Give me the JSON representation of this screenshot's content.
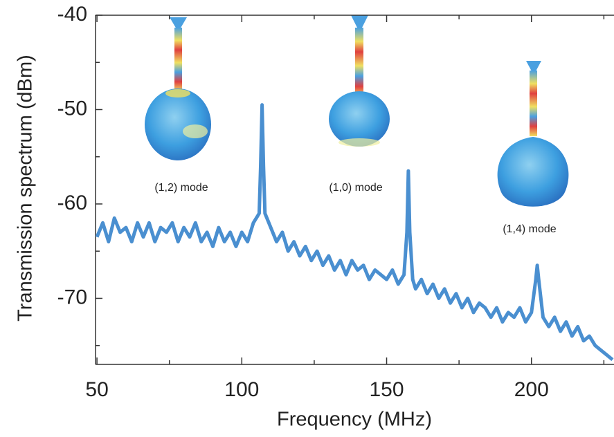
{
  "chart_data": {
    "type": "line",
    "xlabel": "Frequency (MHz)",
    "ylabel": "Transmission spectrum (dBm)",
    "xlim": [
      49.5,
      228.5
    ],
    "ylim": [
      -77,
      -40
    ],
    "xticks": [
      50,
      100,
      150,
      200
    ],
    "yticks": [
      -40,
      -50,
      -60,
      -70
    ],
    "xminorticks": [
      75,
      125,
      175,
      225
    ],
    "yminorticks": [
      -45,
      -55,
      -65,
      -75
    ],
    "annotations": [
      "(1,2) mode",
      "(1,0) mode",
      "(1,4) mode"
    ],
    "series": [
      {
        "color": "#4a8fd0",
        "x": [
          50,
          52,
          54,
          56,
          58,
          60,
          62,
          64,
          66,
          68,
          70,
          72,
          74,
          76,
          78,
          80,
          82,
          84,
          86,
          88,
          90,
          92,
          94,
          96,
          98,
          100,
          102,
          104,
          106,
          106.5,
          107,
          107.5,
          108,
          110,
          112,
          114,
          116,
          118,
          120,
          122,
          124,
          126,
          128,
          130,
          132,
          134,
          136,
          138,
          140,
          142,
          144,
          146,
          148,
          150,
          152,
          154,
          156,
          157,
          157.5,
          158,
          159,
          160,
          162,
          164,
          166,
          168,
          170,
          172,
          174,
          176,
          178,
          180,
          182,
          184,
          186,
          188,
          190,
          192,
          194,
          196,
          198,
          200,
          201.5,
          202,
          202.5,
          204,
          206,
          208,
          210,
          212,
          214,
          216,
          218,
          220,
          222,
          224,
          226,
          228
        ],
        "values": [
          -63.5,
          -62,
          -64,
          -61.5,
          -63,
          -62.5,
          -64,
          -62,
          -63.5,
          -62,
          -64,
          -62.5,
          -63,
          -62,
          -64,
          -62.5,
          -63.5,
          -62,
          -64,
          -63,
          -64.5,
          -62.5,
          -64,
          -63,
          -64.5,
          -63,
          -64,
          -62,
          -61,
          -56,
          -49.5,
          -56,
          -61,
          -62.5,
          -64,
          -63,
          -65,
          -64,
          -65.5,
          -64.5,
          -66,
          -65,
          -66.5,
          -65.5,
          -67,
          -66,
          -67.5,
          -66,
          -67,
          -66.5,
          -68,
          -67,
          -67.5,
          -68,
          -67,
          -68.5,
          -67.5,
          -63,
          -56.5,
          -63,
          -68,
          -69,
          -68,
          -69.5,
          -68.5,
          -70,
          -69,
          -70.5,
          -69.5,
          -71,
          -70,
          -71.5,
          -70.5,
          -71,
          -72,
          -71,
          -72.5,
          -71.5,
          -72,
          -71,
          -72.5,
          -71.5,
          -68,
          -66.5,
          -68,
          -72,
          -73,
          -72,
          -73.5,
          -72.5,
          -74,
          -73,
          -74.5,
          -74,
          -75,
          -75.5,
          -76,
          -76.5
        ]
      }
    ]
  }
}
